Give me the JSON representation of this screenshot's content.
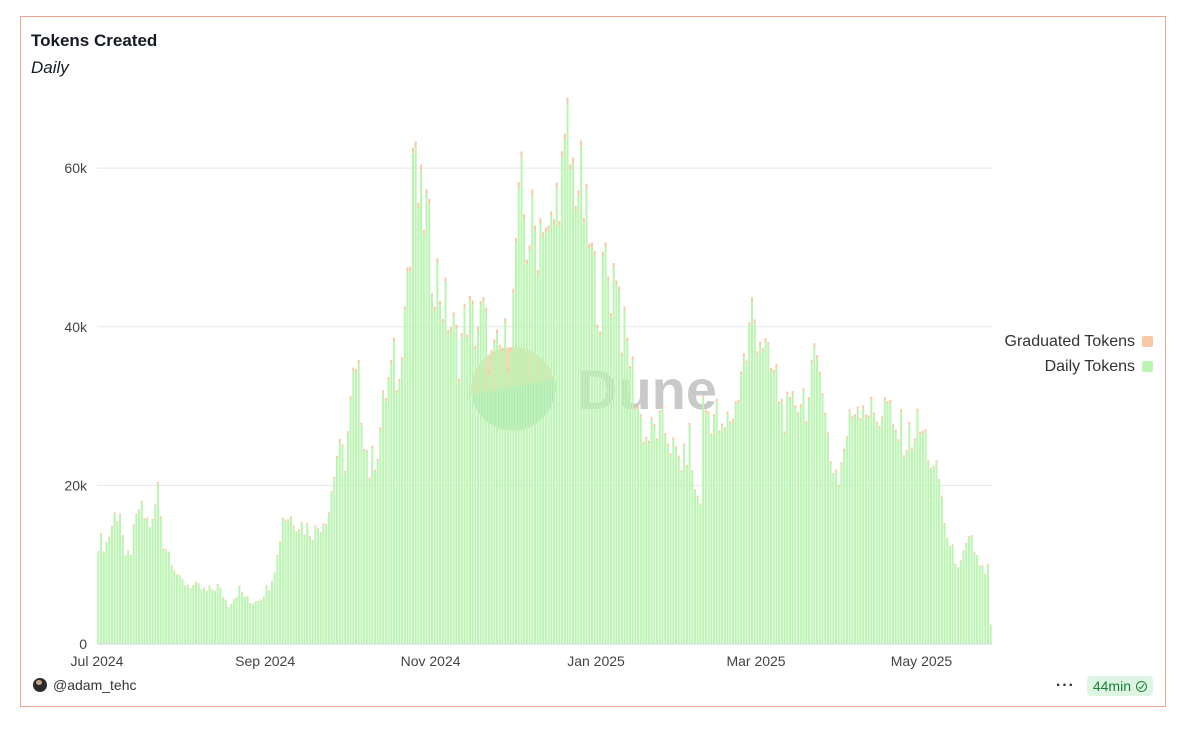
{
  "card": {
    "author": "@adam_tehc",
    "refresh_label": "44min",
    "more_label": "···"
  },
  "watermark": "Dune",
  "colors": {
    "daily": "#baf5b2",
    "graduated": "#f7c9a6",
    "grid": "#e5e7eb",
    "border": "#f1a493"
  },
  "chart_data": {
    "type": "bar",
    "stacked": true,
    "title": "Tokens Created",
    "subtitle": "Daily",
    "xlabel": "",
    "ylabel": "",
    "x_ticks": [
      "Jul 2024",
      "Sep 2024",
      "Nov 2024",
      "Jan 2025",
      "Mar 2025",
      "May 2025"
    ],
    "y_ticks": [
      "0",
      "20k",
      "40k",
      "60k"
    ],
    "ylim": [
      0,
      72000
    ],
    "grid": true,
    "legend_position": "right",
    "series": [
      {
        "name": "Graduated Tokens",
        "color": "#f7c9a6"
      },
      {
        "name": "Daily Tokens",
        "color": "#baf5b2"
      }
    ],
    "knots": [
      [
        0,
        13000
      ],
      [
        3,
        12700
      ],
      [
        6,
        16200
      ],
      [
        8,
        17000
      ],
      [
        10,
        10200
      ],
      [
        12,
        12000
      ],
      [
        15,
        17200
      ],
      [
        18,
        15500
      ],
      [
        20,
        15000
      ],
      [
        22,
        19800
      ],
      [
        24,
        13000
      ],
      [
        27,
        11000
      ],
      [
        30,
        7900
      ],
      [
        33,
        7600
      ],
      [
        36,
        7200
      ],
      [
        40,
        6600
      ],
      [
        44,
        7300
      ],
      [
        48,
        5000
      ],
      [
        52,
        6900
      ],
      [
        56,
        5200
      ],
      [
        60,
        6000
      ],
      [
        63,
        7500
      ],
      [
        66,
        11000
      ],
      [
        68,
        16300
      ],
      [
        72,
        16000
      ],
      [
        76,
        14800
      ],
      [
        80,
        14300
      ],
      [
        85,
        17000
      ],
      [
        88,
        24000
      ],
      [
        91,
        23500
      ],
      [
        94,
        33000
      ],
      [
        96,
        33000
      ],
      [
        98,
        27000
      ],
      [
        100,
        22000
      ],
      [
        103,
        25000
      ],
      [
        106,
        32000
      ],
      [
        109,
        35500
      ],
      [
        111,
        32500
      ],
      [
        113,
        47000
      ],
      [
        115,
        48000
      ],
      [
        116,
        63000
      ],
      [
        117,
        58500
      ],
      [
        119,
        55000
      ],
      [
        121,
        54500
      ],
      [
        123,
        48000
      ],
      [
        125,
        46500
      ],
      [
        127,
        43500
      ],
      [
        130,
        40500
      ],
      [
        133,
        37000
      ],
      [
        136,
        42000
      ],
      [
        139,
        40000
      ],
      [
        142,
        41500
      ],
      [
        145,
        35500
      ],
      [
        148,
        37000
      ],
      [
        151,
        38500
      ],
      [
        153,
        43000
      ],
      [
        154,
        51000
      ],
      [
        156,
        57000
      ],
      [
        158,
        51000
      ],
      [
        160,
        53000
      ],
      [
        162,
        51500
      ],
      [
        164,
        55500
      ],
      [
        166,
        50500
      ],
      [
        168,
        53500
      ],
      [
        170,
        59000
      ],
      [
        172,
        60000
      ],
      [
        173,
        65000
      ],
      [
        174,
        60500
      ],
      [
        176,
        59000
      ],
      [
        178,
        58000
      ],
      [
        180,
        53000
      ],
      [
        183,
        46500
      ],
      [
        185,
        43000
      ],
      [
        187,
        48500
      ],
      [
        189,
        45000
      ],
      [
        191,
        49000
      ],
      [
        193,
        40000
      ],
      [
        196,
        36500
      ],
      [
        198,
        32000
      ],
      [
        200,
        28500
      ],
      [
        202,
        26000
      ],
      [
        205,
        27000
      ],
      [
        208,
        27500
      ],
      [
        210,
        26500
      ],
      [
        213,
        23500
      ],
      [
        216,
        23000
      ],
      [
        218,
        26000
      ],
      [
        220,
        19000
      ],
      [
        222,
        18500
      ],
      [
        223,
        30000
      ],
      [
        226,
        29000
      ],
      [
        228,
        29000
      ],
      [
        230,
        26000
      ],
      [
        232,
        28000
      ],
      [
        235,
        30000
      ],
      [
        237,
        35000
      ],
      [
        239,
        36500
      ],
      [
        241,
        42000
      ],
      [
        243,
        40000
      ],
      [
        245,
        38500
      ],
      [
        247,
        35000
      ],
      [
        250,
        33500
      ],
      [
        252,
        30000
      ],
      [
        255,
        28500
      ],
      [
        257,
        31000
      ],
      [
        260,
        31500
      ],
      [
        262,
        30500
      ],
      [
        264,
        35000
      ],
      [
        266,
        38000
      ],
      [
        268,
        28500
      ],
      [
        270,
        23500
      ],
      [
        273,
        21000
      ],
      [
        276,
        26500
      ],
      [
        279,
        30500
      ],
      [
        282,
        31000
      ],
      [
        285,
        29000
      ],
      [
        288,
        29000
      ],
      [
        291,
        30500
      ],
      [
        293,
        26500
      ],
      [
        296,
        27000
      ],
      [
        298,
        25500
      ],
      [
        300,
        26500
      ],
      [
        302,
        27500
      ],
      [
        305,
        26000
      ],
      [
        308,
        21500
      ],
      [
        310,
        21000
      ],
      [
        312,
        15500
      ],
      [
        314,
        12000
      ],
      [
        316,
        11000
      ],
      [
        318,
        9800
      ],
      [
        320,
        12000
      ],
      [
        322,
        13000
      ],
      [
        324,
        11000
      ],
      [
        326,
        9500
      ],
      [
        327,
        8500
      ],
      [
        328,
        9800
      ],
      [
        329,
        2300
      ]
    ]
  }
}
